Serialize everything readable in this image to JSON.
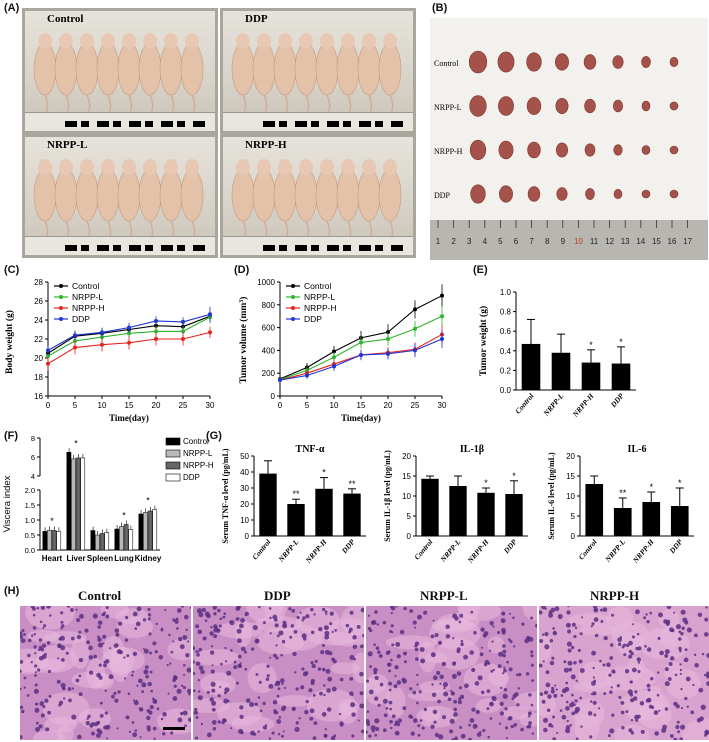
{
  "panels": {
    "A": "(A)",
    "B": "(B)",
    "C": "(C)",
    "D": "(D)",
    "E": "(E)",
    "F": "(F)",
    "G": "(G)",
    "H": "(H)"
  },
  "mice_groups": [
    "Control",
    "DDP",
    "NRPP-L",
    "NRPP-H"
  ],
  "tumor_rows": [
    "Control",
    "NRPP-L",
    "NRPP-H",
    "DDP"
  ],
  "ruler_numbers": [
    "1",
    "2",
    "3",
    "4",
    "5",
    "6",
    "7",
    "8",
    "9",
    "10",
    "11",
    "12",
    "13",
    "14",
    "15",
    "16",
    "17"
  ],
  "histology_labels": [
    "Control",
    "DDP",
    "NRPP-L",
    "NRPP-H"
  ],
  "colors": {
    "control": "#000000",
    "nrpp_l": "#2db52d",
    "nrpp_h": "#e8231e",
    "ddp": "#1f35d6",
    "he_pink": "#d58fc0",
    "he_purple": "#6b3d8f"
  },
  "chart_data": [
    {
      "id": "C",
      "type": "line",
      "xlabel": "Time(day)",
      "ylabel": "Body weight (g)",
      "x": [
        0,
        5,
        10,
        15,
        20,
        25,
        30
      ],
      "xticks": [
        "0",
        "5",
        "10",
        "15",
        "20",
        "25",
        "30"
      ],
      "ylim": [
        16,
        28
      ],
      "yticks": [
        "16",
        "18",
        "20",
        "22",
        "24",
        "26",
        "28"
      ],
      "legend": "top-left",
      "series": [
        {
          "name": "Control",
          "color": "#000000",
          "values": [
            20.5,
            22.3,
            22.6,
            23.0,
            23.4,
            23.3,
            24.4
          ],
          "err": [
            0.5,
            0.5,
            0.5,
            0.5,
            0.5,
            0.5,
            0.6
          ]
        },
        {
          "name": "NRPP-L",
          "color": "#2db52d",
          "values": [
            20.2,
            21.8,
            22.2,
            22.6,
            22.8,
            22.8,
            24.3
          ],
          "err": [
            0.6,
            0.6,
            0.6,
            0.5,
            0.6,
            0.6,
            0.7
          ]
        },
        {
          "name": "NRPP-H",
          "color": "#e8231e",
          "values": [
            19.4,
            21.1,
            21.4,
            21.6,
            22.0,
            22.0,
            22.7
          ],
          "err": [
            0.7,
            0.7,
            0.7,
            0.7,
            0.7,
            0.7,
            0.6
          ]
        },
        {
          "name": "DDP",
          "color": "#1f35d6",
          "values": [
            20.8,
            22.4,
            22.7,
            23.2,
            23.9,
            23.8,
            24.6
          ],
          "err": [
            0.5,
            0.5,
            0.5,
            0.5,
            0.5,
            0.5,
            0.8
          ]
        }
      ]
    },
    {
      "id": "D",
      "type": "line",
      "xlabel": "Time(day)",
      "ylabel": "Tumor volume (mm³)",
      "ylabel_main": "Tumor volume (mm",
      "ylabel_sup": "3",
      "ylabel_end": ")",
      "x": [
        0,
        5,
        10,
        15,
        20,
        25,
        30
      ],
      "xticks": [
        "0",
        "5",
        "10",
        "15",
        "20",
        "25",
        "30"
      ],
      "ylim": [
        0,
        1000
      ],
      "yticks": [
        "0",
        "200",
        "400",
        "600",
        "800",
        "1000"
      ],
      "legend": "top-left",
      "series": [
        {
          "name": "Control",
          "color": "#000000",
          "values": [
            150,
            250,
            390,
            510,
            560,
            760,
            880
          ],
          "err": [
            20,
            40,
            50,
            60,
            70,
            80,
            100
          ]
        },
        {
          "name": "NRPP-L",
          "color": "#2db52d",
          "values": [
            145,
            225,
            340,
            470,
            500,
            590,
            700
          ],
          "err": [
            20,
            35,
            45,
            55,
            60,
            70,
            90
          ]
        },
        {
          "name": "NRPP-H",
          "color": "#e8231e",
          "values": [
            140,
            200,
            280,
            360,
            380,
            410,
            540
          ],
          "err": [
            20,
            30,
            40,
            45,
            50,
            60,
            80
          ]
        },
        {
          "name": "DDP",
          "color": "#1f35d6",
          "values": [
            140,
            180,
            260,
            360,
            370,
            400,
            500
          ],
          "err": [
            20,
            30,
            40,
            45,
            50,
            60,
            80
          ]
        }
      ]
    },
    {
      "id": "E",
      "type": "bar",
      "ylabel": "Tumor weight (g)",
      "categories": [
        "Control",
        "NRPP-L",
        "NRPP-H",
        "DDP"
      ],
      "values": [
        0.47,
        0.38,
        0.28,
        0.27
      ],
      "err": [
        0.25,
        0.19,
        0.13,
        0.17
      ],
      "sig": [
        "",
        "",
        "*",
        "*"
      ],
      "ylim": [
        0,
        1.0
      ],
      "yticks": [
        "0.0",
        "0.2",
        "0.4",
        "0.6",
        "0.8",
        "1.0"
      ]
    },
    {
      "id": "F",
      "type": "bar",
      "ylabel": "Viscera index",
      "categories": [
        "Heart",
        "Liver",
        "Spleen",
        "Lung",
        "Kidney"
      ],
      "yticks_low": [
        "0.0",
        "0.5",
        "1.0",
        "1.5",
        "2.0"
      ],
      "yticks_high": [
        "4",
        "6",
        "8"
      ],
      "legend": "right",
      "series": [
        {
          "name": "Control",
          "values": [
            0.62,
            6.5,
            0.65,
            0.7,
            1.2
          ]
        },
        {
          "name": "NRPP-L",
          "values": [
            0.66,
            5.8,
            0.5,
            0.78,
            1.25
          ]
        },
        {
          "name": "NRPP-H",
          "values": [
            0.65,
            5.9,
            0.55,
            0.85,
            1.3
          ]
        },
        {
          "name": "DDP",
          "values": [
            0.62,
            5.9,
            0.58,
            0.68,
            1.35
          ]
        }
      ],
      "sig": [
        {
          "cat": "Heart",
          "text": "*"
        },
        {
          "cat": "Liver",
          "text": "*"
        },
        {
          "cat": "Lung",
          "text": "*"
        },
        {
          "cat": "Kidney",
          "text": "*"
        }
      ]
    },
    {
      "id": "G1",
      "type": "bar",
      "title": "TNF-α",
      "ylabel": "Serum TNF-α level (pg/mL)",
      "categories": [
        "Control",
        "NRPP-L",
        "NRPP-H",
        "DDP"
      ],
      "values": [
        39,
        20,
        29.5,
        26.5
      ],
      "err": [
        8,
        3,
        7,
        3
      ],
      "sig": [
        "",
        "**",
        "*",
        "**"
      ],
      "ylim": [
        0,
        50
      ],
      "yticks": [
        "0",
        "10",
        "20",
        "30",
        "40",
        "50"
      ]
    },
    {
      "id": "G2",
      "type": "bar",
      "title": "IL-1β",
      "ylabel": "Serum IL-1β level (pg/mL)",
      "categories": [
        "Control",
        "NRPP-L",
        "NRPP-H",
        "DDP"
      ],
      "values": [
        14.3,
        12.5,
        10.8,
        10.5
      ],
      "err": [
        0.7,
        2.5,
        1.2,
        3.3
      ],
      "sig": [
        "",
        "",
        "*",
        "*"
      ],
      "ylim": [
        0,
        20
      ],
      "yticks": [
        "0",
        "5",
        "10",
        "15",
        "20"
      ]
    },
    {
      "id": "G3",
      "type": "bar",
      "title": "IL-6",
      "ylabel": "Serum IL-6 level (pg/mL)",
      "categories": [
        "Control",
        "NRPP-L",
        "NRPP-H",
        "DDP"
      ],
      "values": [
        13,
        7,
        8.5,
        7.5
      ],
      "err": [
        2,
        2.5,
        2.5,
        4.5
      ],
      "sig": [
        "",
        "**",
        "*",
        "*"
      ],
      "ylim": [
        0,
        20
      ],
      "yticks": [
        "0",
        "5",
        "10",
        "15",
        "20"
      ]
    }
  ]
}
